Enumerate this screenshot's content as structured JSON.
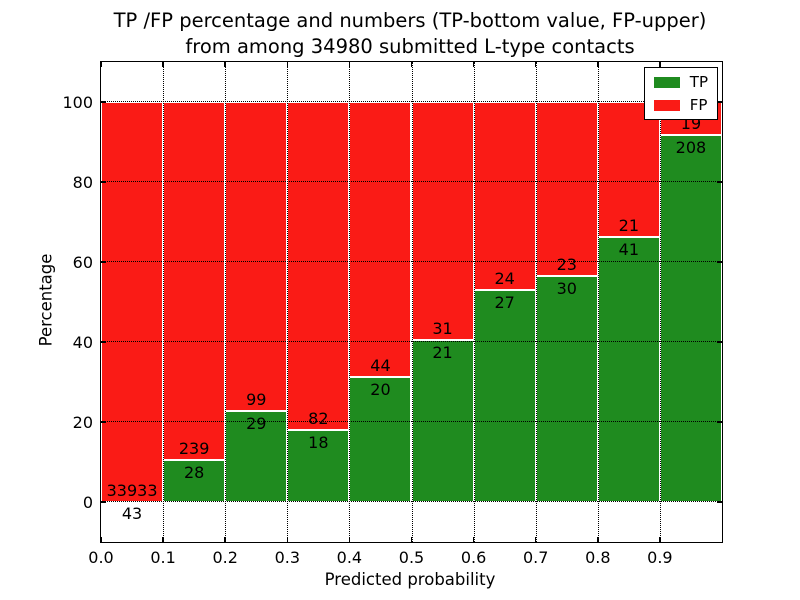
{
  "chart_data": {
    "type": "bar",
    "variant": "stacked-percentage-histogram",
    "title_line1": "TP /FP percentage and numbers (TP-bottom value, FP-upper)",
    "title_line2": "from among 34980 submitted L-type contacts",
    "total_contacts": 34980,
    "xlabel": "Predicted probability",
    "ylabel": "Percentage",
    "xlim": [
      0.0,
      1.0
    ],
    "ylim": [
      -10,
      110
    ],
    "x_ticks": [
      "0.0",
      "0.1",
      "0.2",
      "0.3",
      "0.4",
      "0.5",
      "0.6",
      "0.7",
      "0.8",
      "0.9"
    ],
    "y_ticks": [
      0,
      20,
      40,
      60,
      80,
      100
    ],
    "grid": "dotted black, horizontal and vertical",
    "legend_position": "upper right",
    "colors": {
      "tp": "#1f8b1f",
      "fp": "#fa1b16",
      "bar_edge": "#ffffff"
    },
    "legend": [
      {
        "label": "TP",
        "color": "#1f8b1f"
      },
      {
        "label": "FP",
        "color": "#fa1b16"
      }
    ],
    "bins": [
      {
        "range": "0.0-0.1",
        "tp": 43,
        "fp": 33933
      },
      {
        "range": "0.1-0.2",
        "tp": 28,
        "fp": 239
      },
      {
        "range": "0.2-0.3",
        "tp": 29,
        "fp": 99
      },
      {
        "range": "0.3-0.4",
        "tp": 18,
        "fp": 82
      },
      {
        "range": "0.4-0.5",
        "tp": 20,
        "fp": 44
      },
      {
        "range": "0.5-0.6",
        "tp": 21,
        "fp": 31
      },
      {
        "range": "0.6-0.7",
        "tp": 27,
        "fp": 24
      },
      {
        "range": "0.7-0.8",
        "tp": 30,
        "fp": 23
      },
      {
        "range": "0.8-0.9",
        "tp": 41,
        "fp": 21
      },
      {
        "range": "0.9-1.0",
        "tp": 208,
        "fp": 19
      }
    ]
  }
}
